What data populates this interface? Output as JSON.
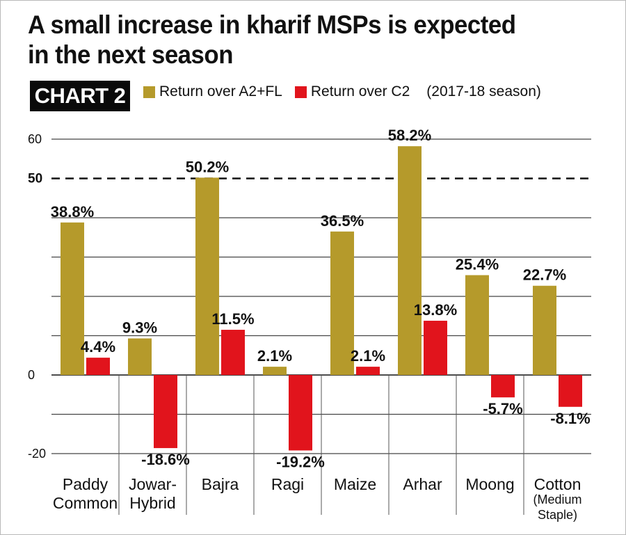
{
  "title": "A small increase in kharif MSPs is expected in the next season",
  "title_lines": [
    "A small increase in kharif MSPs is expected",
    "in the next season"
  ],
  "tag": "CHART 2",
  "legend": {
    "a2fl_label": "Return over A2+FL",
    "c2_label": "Return over C2",
    "note": "(2017-18 season)"
  },
  "colors": {
    "a2fl": "#b59a2b",
    "c2": "#e1141c"
  },
  "chart_data": {
    "type": "bar",
    "title": "A small increase in kharif MSPs is expected in the next season",
    "categories": [
      "Paddy Common",
      "Jowar-Hybrid",
      "Bajra",
      "Ragi",
      "Maize",
      "Arhar",
      "Moong",
      "Cotton (Medium Staple)"
    ],
    "category_lines": [
      [
        "Paddy",
        "Common"
      ],
      [
        "Jowar-",
        "Hybrid"
      ],
      [
        "Bajra"
      ],
      [
        "Ragi"
      ],
      [
        "Maize"
      ],
      [
        "Arhar"
      ],
      [
        "Moong"
      ],
      [
        "Cotton",
        "(Medium",
        "Staple)"
      ]
    ],
    "series": [
      {
        "name": "Return over A2+FL",
        "values": [
          38.8,
          9.3,
          50.2,
          2.1,
          36.5,
          58.2,
          25.4,
          22.7
        ],
        "labels": [
          "38.8%",
          "9.3%",
          "50.2%",
          "2.1%",
          "36.5%",
          "58.2%",
          "25.4%",
          "22.7%"
        ]
      },
      {
        "name": "Return over C2",
        "values": [
          4.4,
          -18.6,
          11.5,
          -19.2,
          2.1,
          13.8,
          -5.7,
          -8.1
        ],
        "labels": [
          "4.4%",
          "-18.6%",
          "11.5%",
          "-19.2%",
          "2.1%",
          "13.8%",
          "-5.7%",
          "-8.1%"
        ]
      }
    ],
    "y_ticks": [
      {
        "value": 60,
        "label": "60"
      },
      {
        "value": 50,
        "label": "50",
        "bold": true
      },
      {
        "value": 0,
        "label": "0"
      },
      {
        "value": -20,
        "label": "-20"
      }
    ],
    "ylim": [
      -20,
      60
    ],
    "gridlines": [
      60,
      40,
      30,
      20,
      10,
      -10,
      -20
    ],
    "reference_line": 50,
    "legend_position": "top",
    "grid": true
  }
}
